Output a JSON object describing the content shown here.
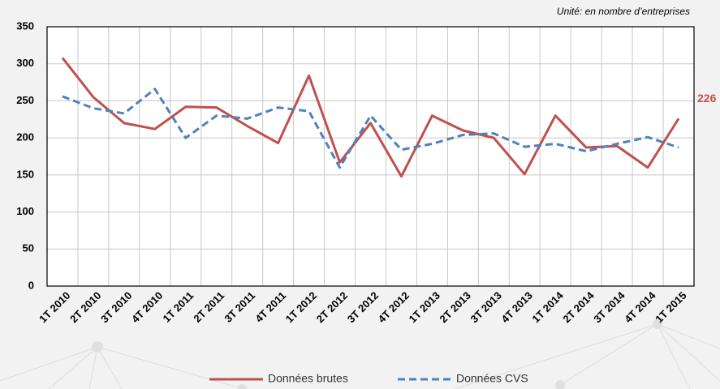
{
  "chart_data": {
    "type": "line",
    "annotation": "Unité: en nombre d’entreprises",
    "categories": [
      "1T 2010",
      "2T 2010",
      "3T 2010",
      "4T 2010",
      "1T 2011",
      "2T 2011",
      "3T 2011",
      "4T 2011",
      "1T 2012",
      "2T 2012",
      "3T 2012",
      "4T 2012",
      "1T 2013",
      "2T 2013",
      "3T 2013",
      "4T 2013",
      "1T 2014",
      "2T 2014",
      "3T 2014",
      "4T 2014",
      "1T 2015"
    ],
    "series": [
      {
        "name": "Données brutes",
        "color": "#c0504d",
        "dashed": false,
        "values": [
          308,
          255,
          220,
          212,
          242,
          241,
          216,
          193,
          284,
          167,
          220,
          148,
          230,
          210,
          200,
          151,
          230,
          187,
          189,
          160,
          226
        ]
      },
      {
        "name": "Données CVS",
        "color": "#4f81bd",
        "dashed": true,
        "values": [
          256,
          240,
          233,
          266,
          200,
          230,
          226,
          241,
          236,
          160,
          230,
          184,
          192,
          204,
          206,
          188,
          192,
          182,
          192,
          201,
          187
        ]
      }
    ],
    "ylim": [
      0,
      350
    ],
    "yticks": [
      0,
      50,
      100,
      150,
      200,
      250,
      300,
      350
    ],
    "grid": true,
    "legend": "bottom"
  }
}
